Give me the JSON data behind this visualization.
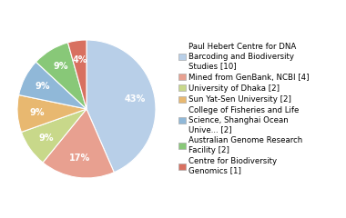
{
  "values": [
    10,
    4,
    2,
    2,
    2,
    2,
    1
  ],
  "colors": [
    "#b8cfe8",
    "#e8a090",
    "#c8d88a",
    "#e8b870",
    "#90b8d8",
    "#88c878",
    "#d87060"
  ],
  "legend_labels": [
    "Paul Hebert Centre for DNA\nBarcoding and Biodiversity\nStudies [10]",
    "Mined from GenBank, NCBI [4]",
    "University of Dhaka [2]",
    "Sun Yat-Sen University [2]",
    "College of Fisheries and Life\nScience, Shanghai Ocean\nUnive... [2]",
    "Australian Genome Research\nFacility [2]",
    "Centre for Biodiversity\nGenomics [1]"
  ],
  "background_color": "#ffffff",
  "pct_fontsize": 7.0,
  "legend_fontsize": 6.2,
  "startangle": 90,
  "pctdistance": 0.72
}
